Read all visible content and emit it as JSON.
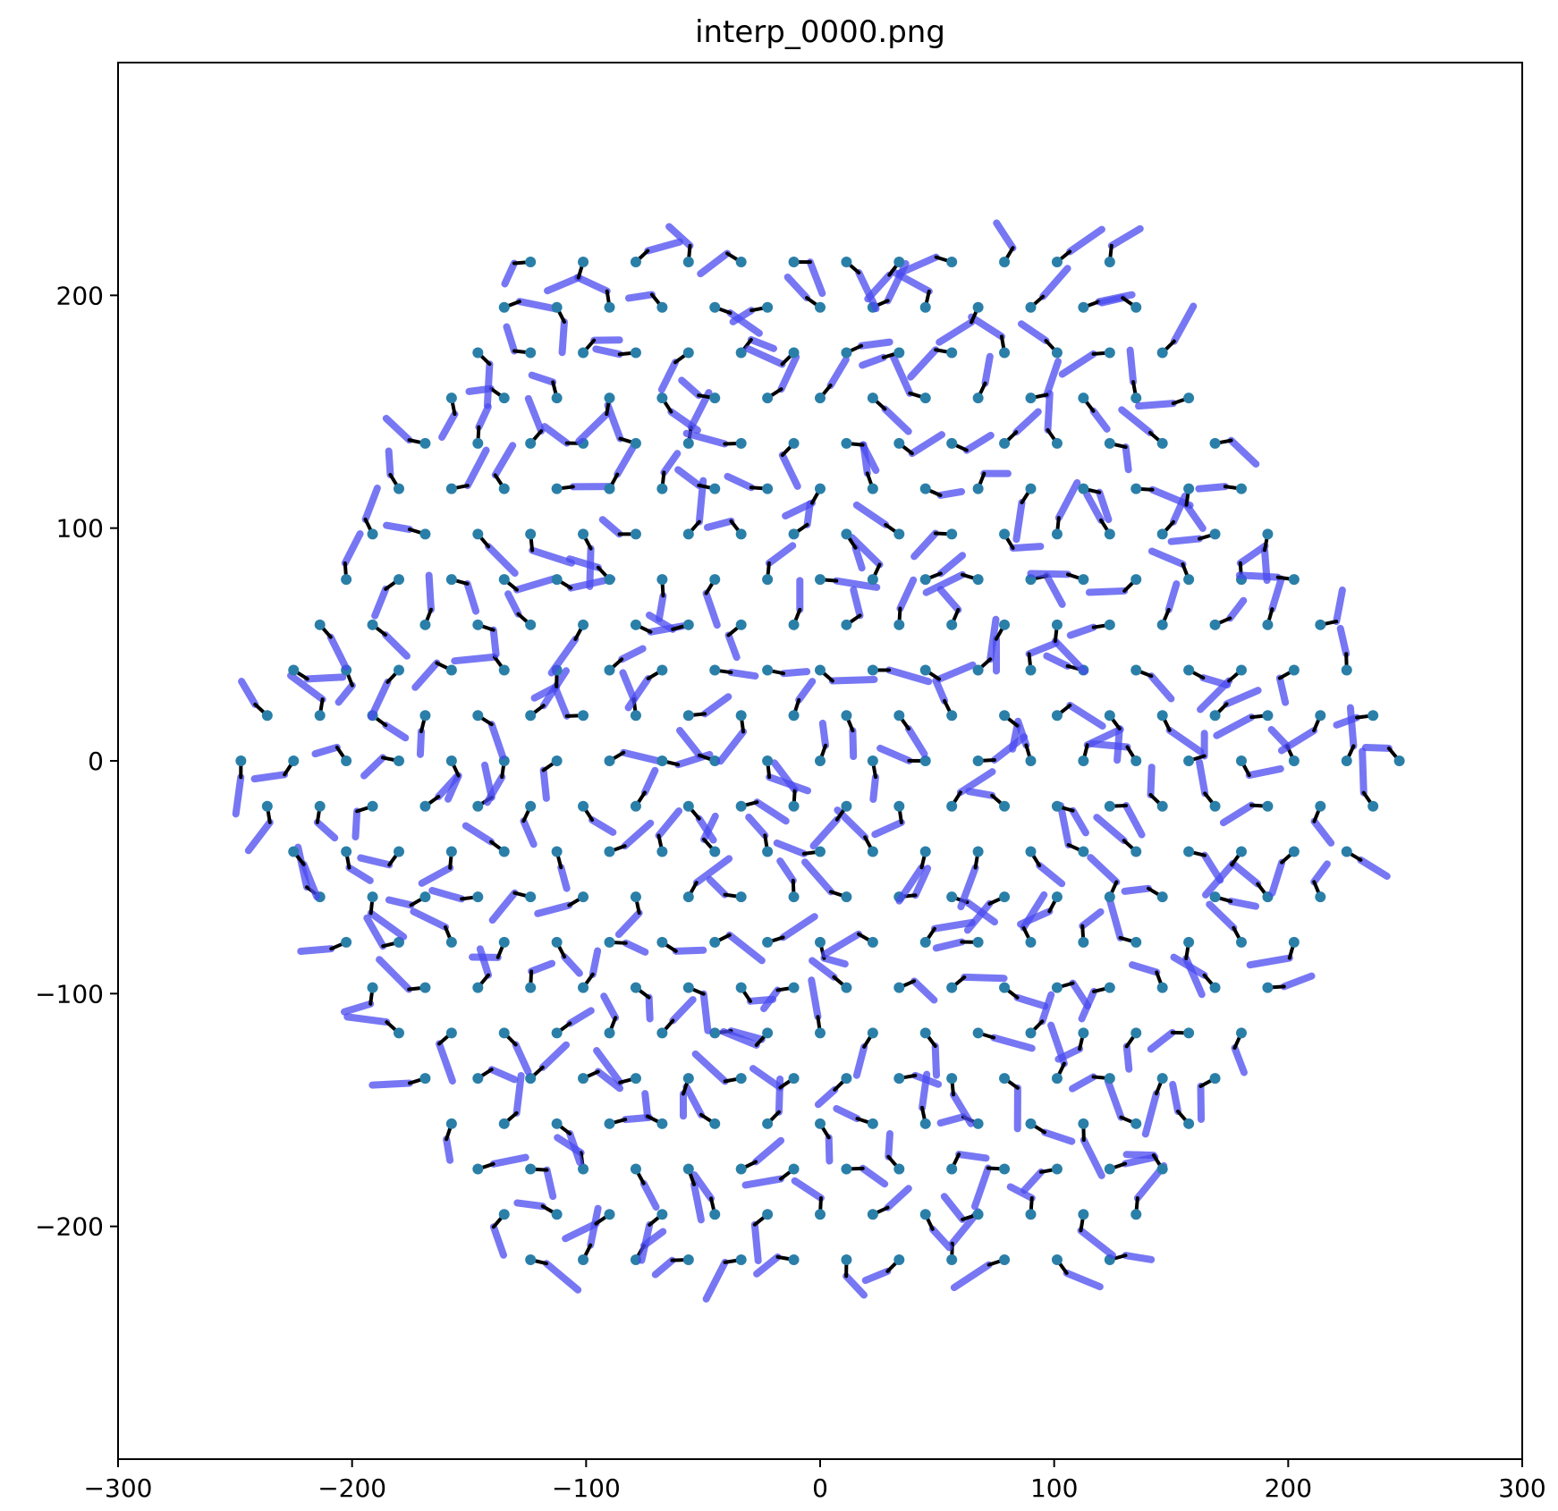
{
  "chart_data": {
    "type": "scatter",
    "title": "interp_0000.png",
    "xlabel": "",
    "ylabel": "",
    "xlim": [
      -300,
      300
    ],
    "ylim": [
      -300,
      300
    ],
    "xticks": [
      -300,
      -200,
      -100,
      0,
      100,
      200,
      300
    ],
    "yticks": [
      -200,
      -100,
      0,
      100,
      200
    ],
    "xtick_labels": [
      "−300",
      "−200",
      "−100",
      "0",
      "100",
      "200",
      "300"
    ],
    "ytick_labels": [
      "−200",
      "−100",
      "0",
      "100",
      "200"
    ],
    "grid": false,
    "legend": "none",
    "lattice": {
      "spacing": 22.5,
      "radius": 265,
      "shape": "hexagon"
    },
    "colors": {
      "points": "#2a7fa8",
      "stubs": "#000000",
      "sticks": "#4a4af0",
      "axes": "#000000",
      "background": "#ffffff"
    }
  }
}
